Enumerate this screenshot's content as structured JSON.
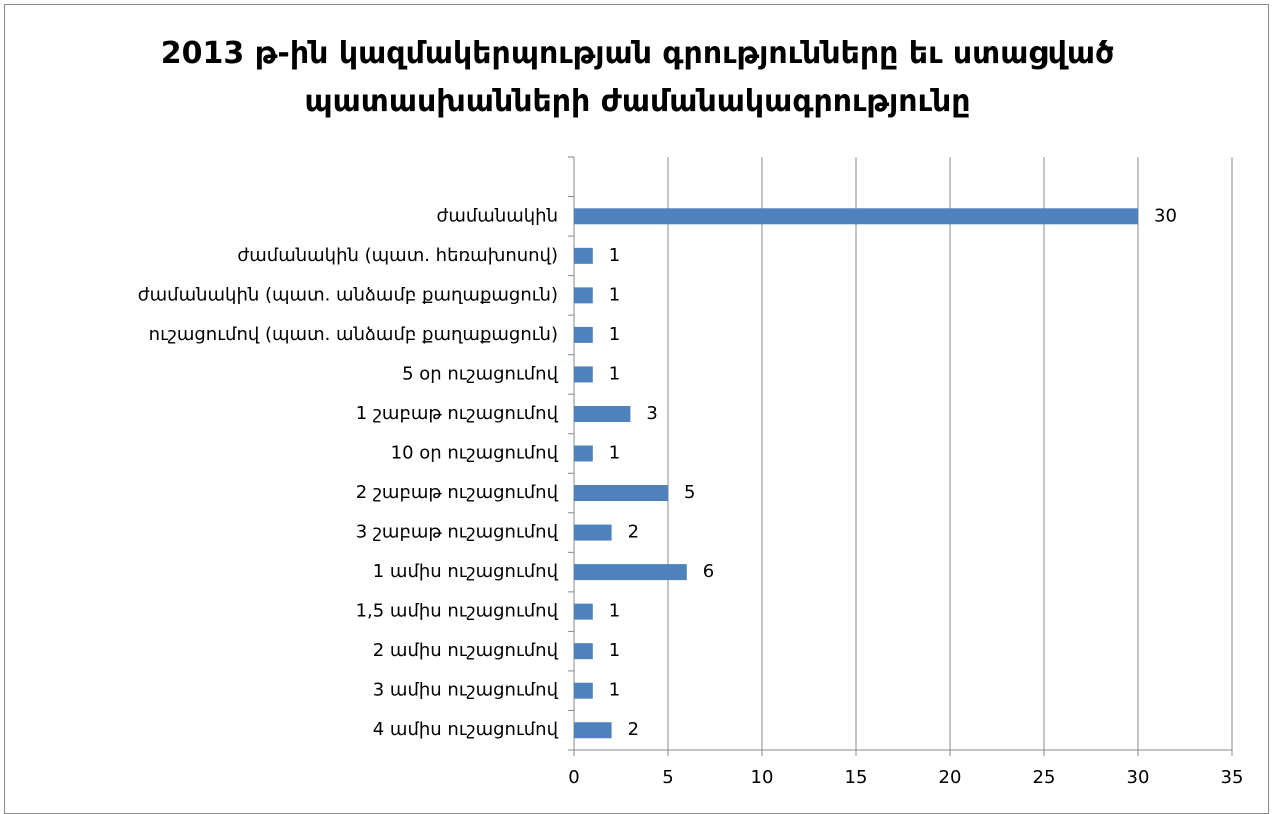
{
  "chart_data": {
    "type": "bar",
    "orientation": "horizontal",
    "title": "2013 թ-ին կազմակերպության գրությունները եւ ստացված պատասխանների ժամանակագրությունը",
    "categories": [
      "ժամանակին",
      "ժամանակին (պատ. հեռախոսով)",
      "ժամանակին (պատ. անձամբ քաղաքացուն)",
      "ուշացումով (պատ. անձամբ քաղաքացուն)",
      "5 օր ուշացումով",
      "1 շաբաթ ուշացումով",
      "10 օր ուշացումով",
      "2 շաբաթ ուշացումով",
      "3 շաբաթ ուշացումով",
      "1 ամիս ուշացումով",
      "1,5 ամիս ուշացումով",
      "2 ամիս ուշացումով",
      "3 ամիս ուշացումով",
      "4 ամիս ուշացումով"
    ],
    "values": [
      30,
      1,
      1,
      1,
      1,
      3,
      1,
      5,
      2,
      6,
      1,
      1,
      1,
      2
    ],
    "color": "#4f81bd",
    "xlim": [
      0,
      35
    ],
    "xticks": [
      0,
      5,
      10,
      15,
      20,
      25,
      30,
      35
    ],
    "grid": true
  }
}
